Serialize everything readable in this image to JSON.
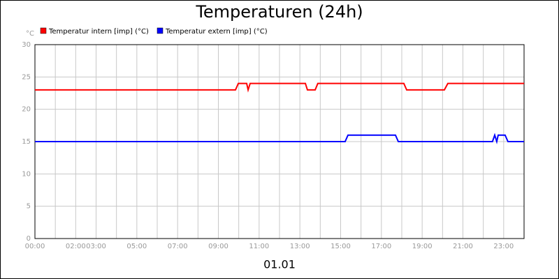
{
  "chart_data": {
    "type": "line",
    "title": "Temperaturen (24h)",
    "xlabel": "01.01",
    "ylabel": "°C",
    "xlim": [
      0,
      24
    ],
    "ylim": [
      0,
      30
    ],
    "xticks": [
      {
        "value": 0,
        "label": "00:00"
      },
      {
        "value": 2,
        "label": "02:00"
      },
      {
        "value": 3,
        "label": "03:00"
      },
      {
        "value": 5,
        "label": "05:00"
      },
      {
        "value": 7,
        "label": "07:00"
      },
      {
        "value": 9,
        "label": "09:00"
      },
      {
        "value": 11,
        "label": "11:00"
      },
      {
        "value": 13,
        "label": "13:00"
      },
      {
        "value": 15,
        "label": "15:00"
      },
      {
        "value": 17,
        "label": "17:00"
      },
      {
        "value": 19,
        "label": "19:00"
      },
      {
        "value": 21,
        "label": "21:00"
      },
      {
        "value": 23,
        "label": "23:00"
      }
    ],
    "minor_xticks": [
      1,
      4,
      6,
      8,
      10,
      12,
      14,
      16,
      18,
      20,
      22,
      24
    ],
    "yticks": [
      0,
      5,
      10,
      15,
      20,
      25,
      30
    ],
    "grid": true,
    "series": [
      {
        "name": "Temperatur intern [imp] (°C)",
        "color": "#ff0000",
        "x": [
          0,
          9.84,
          9.98,
          10.39,
          10.46,
          10.56,
          13.27,
          13.37,
          13.75,
          13.88,
          18.1,
          18.24,
          20.09,
          20.26,
          24
        ],
        "values": [
          23,
          23,
          24,
          24,
          23,
          24,
          24,
          23,
          23,
          24,
          24,
          23,
          23,
          24,
          24
        ]
      },
      {
        "name": "Temperatur extern [imp] (°C)",
        "color": "#0000ff",
        "x": [
          0,
          15.22,
          15.36,
          17.69,
          17.83,
          22.45,
          22.56,
          22.66,
          22.73,
          23.07,
          23.21,
          24
        ],
        "values": [
          15,
          15,
          16,
          16,
          15,
          15,
          16,
          15,
          16,
          16,
          15,
          15
        ]
      }
    ]
  }
}
